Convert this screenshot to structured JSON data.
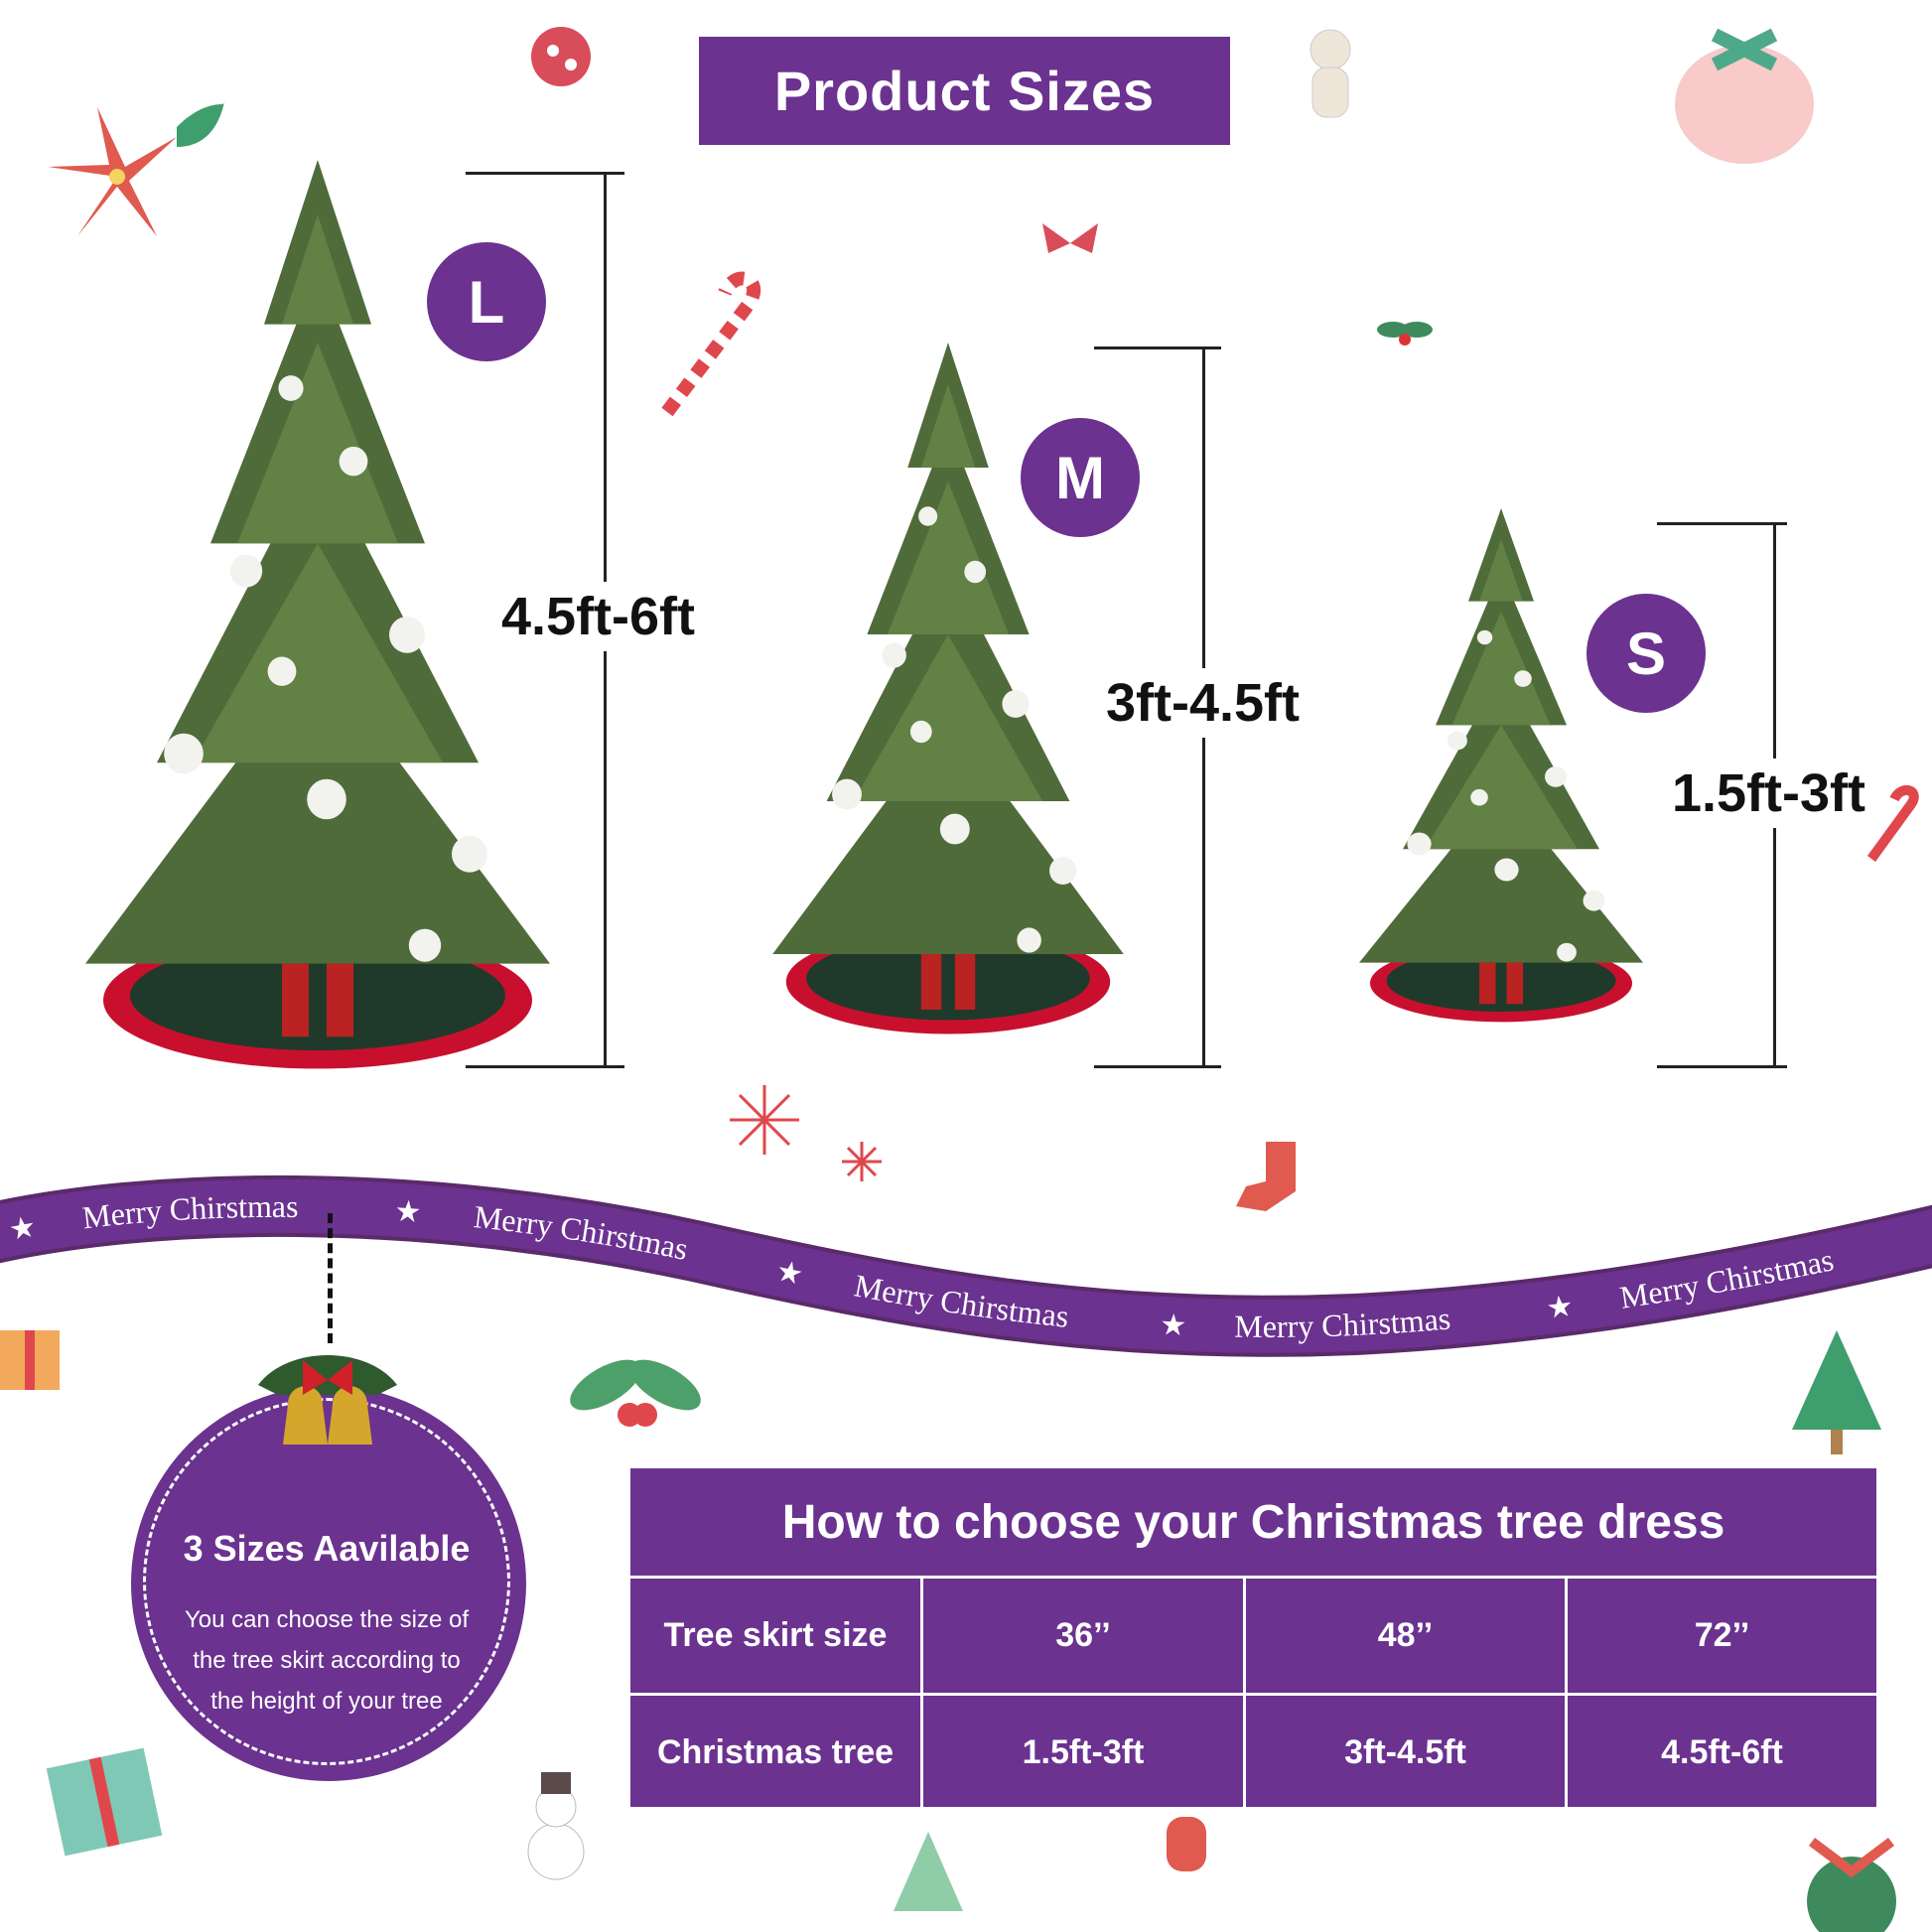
{
  "title": "Product Sizes",
  "sizes": [
    {
      "badge": "L",
      "range": "4.5ft-6ft"
    },
    {
      "badge": "M",
      "range": "3ft-4.5ft"
    },
    {
      "badge": "S",
      "range": "1.5ft-3ft"
    }
  ],
  "ribbon": {
    "text": "Merry Chirstmas",
    "items": [
      "Merry Chirstmas",
      "Merry Chirstmas",
      "Merry Chirstmas",
      "Merry Chirstmas",
      "Merry Chirstmas"
    ]
  },
  "info": {
    "title": "3 Sizes Aavilable",
    "text": "You can choose the size of the tree skirt according to the height of your tree"
  },
  "table": {
    "title": "How to choose your Christmas tree dress",
    "rows": [
      {
        "label": "Tree skirt size",
        "values": [
          "36’’",
          "48’’",
          "72’’"
        ]
      },
      {
        "label": "Christmas tree",
        "values": [
          "1.5ft-3ft",
          "3ft-4.5ft",
          "4.5ft-6ft"
        ]
      }
    ]
  },
  "colors": {
    "accent": "#6b3290",
    "tree": "#4f6b3a",
    "skirt": "#c8102e",
    "skirt_center": "#1f3a2a"
  }
}
